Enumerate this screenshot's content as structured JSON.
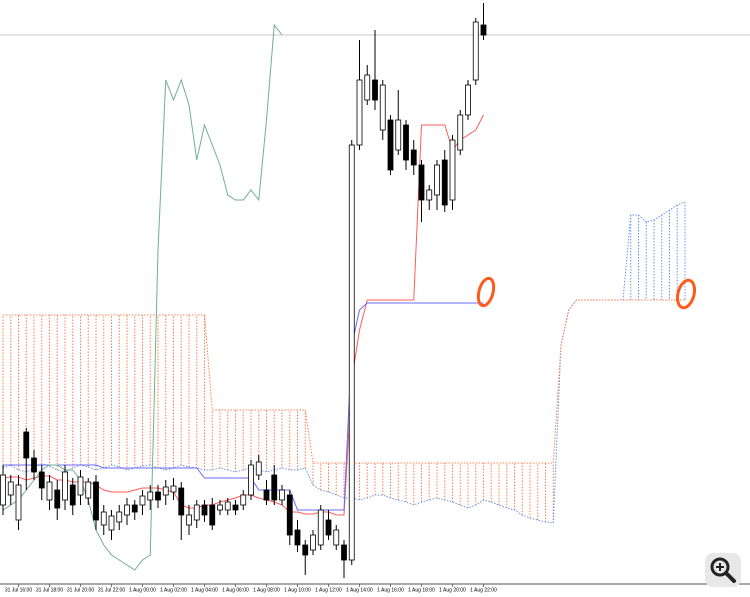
{
  "chart_data": {
    "type": "candlestick",
    "categories": [
      null,
      null,
      "31 Jul 16:00",
      null,
      null,
      null,
      "31 Jul 18:00",
      null,
      null,
      null,
      "31 Jul 20:00",
      null,
      null,
      null,
      "31 Jul 22:00",
      null,
      null,
      null,
      "1 Aug 00:00",
      null,
      null,
      null,
      "1 Aug 02:00",
      null,
      null,
      null,
      "1 Aug 04:00",
      null,
      null,
      null,
      "1 Aug 06:00",
      null,
      null,
      null,
      "1 Aug 08:00",
      null,
      null,
      null,
      "1 Aug 10:00",
      null,
      null,
      null,
      "1 Aug 12:00",
      null,
      null,
      null,
      "1 Aug 14:00",
      null,
      null,
      null,
      "1 Aug 16:00",
      null,
      null,
      null,
      "1 Aug 18:00",
      null,
      null,
      null,
      "1 Aug 20:00",
      null,
      null,
      null,
      "1 Aug 22:00"
    ],
    "open": [
      75,
      85,
      60,
      148,
      122,
      108,
      80,
      90,
      80,
      95,
      85,
      82,
      98,
      55,
      50,
      58,
      65,
      75,
      75,
      80,
      88,
      85,
      88,
      92,
      55,
      60,
      75,
      75,
      70,
      70,
      75,
      75,
      85,
      105,
      90,
      105,
      80,
      85,
      50,
      35,
      30,
      35,
      60,
      35,
      35,
      20,
      435,
      480,
      500,
      450,
      460,
      430,
      455,
      430,
      415,
      380,
      385,
      420,
      380,
      430,
      465,
      500,
      555
    ],
    "high": [
      115,
      105,
      105,
      152,
      130,
      115,
      105,
      100,
      115,
      102,
      110,
      102,
      105,
      75,
      70,
      75,
      82,
      80,
      90,
      95,
      95,
      100,
      102,
      98,
      75,
      80,
      80,
      82,
      80,
      82,
      80,
      90,
      120,
      125,
      100,
      115,
      95,
      90,
      60,
      40,
      50,
      75,
      70,
      55,
      40,
      440,
      540,
      515,
      550,
      500,
      465,
      490,
      460,
      440,
      420,
      395,
      420,
      430,
      445,
      470,
      500,
      562,
      577
    ],
    "low": [
      65,
      75,
      50,
      90,
      100,
      80,
      70,
      60,
      70,
      65,
      75,
      75,
      50,
      45,
      40,
      50,
      55,
      60,
      65,
      70,
      72,
      75,
      80,
      40,
      45,
      52,
      58,
      50,
      65,
      65,
      65,
      70,
      80,
      100,
      75,
      75,
      75,
      35,
      28,
      5,
      25,
      30,
      40,
      30,
      2,
      15,
      430,
      475,
      470,
      440,
      405,
      425,
      410,
      405,
      358,
      370,
      370,
      368,
      370,
      425,
      460,
      495,
      540
    ],
    "close": [
      105,
      98,
      95,
      122,
      108,
      92,
      98,
      72,
      108,
      75,
      103,
      98,
      60,
      68,
      64,
      68,
      75,
      68,
      84,
      88,
      80,
      93,
      94,
      65,
      65,
      75,
      65,
      55,
      75,
      78,
      70,
      85,
      115,
      118,
      80,
      80,
      90,
      45,
      35,
      25,
      45,
      70,
      45,
      50,
      20,
      435,
      500,
      505,
      480,
      495,
      410,
      460,
      420,
      415,
      380,
      390,
      415,
      375,
      440,
      465,
      495,
      558,
      545
    ],
    "up_color": "#ffffff",
    "down_color": "#000000",
    "ylim": [
      0,
      580
    ],
    "series": [
      {
        "color": "#ff5b5b",
        "values": [
          102,
          103,
          103,
          100,
          102,
          104,
          104,
          100,
          100,
          98,
          98,
          98,
          95,
          90,
          88,
          88,
          88,
          90,
          92,
          92,
          92,
          90,
          88,
          75,
          72,
          72,
          75,
          75,
          78,
          80,
          82,
          85,
          85,
          82,
          80,
          78,
          75,
          68,
          68,
          66,
          66,
          68,
          68,
          65,
          65,
          200,
          250,
          280,
          280,
          280,
          280,
          280,
          280,
          280,
          455,
          455,
          455,
          455,
          430,
          440,
          445,
          450,
          465
        ]
      },
      {
        "color": "#6a6aff",
        "values": [
          115,
          115,
          115,
          115,
          115,
          115,
          115,
          115,
          115,
          115,
          115,
          115,
          115,
          112,
          112,
          112,
          112,
          112,
          112,
          112,
          112,
          112,
          112,
          112,
          112,
          112,
          102,
          102,
          102,
          102,
          102,
          102,
          102,
          90,
          90,
          90,
          90,
          90,
          70,
          70,
          70,
          70,
          70,
          70,
          70,
          235,
          270,
          277,
          277,
          277,
          277,
          277,
          277,
          277,
          277,
          277,
          277,
          277,
          277,
          277,
          277,
          277,
          277
        ]
      },
      {
        "color": "#6fb08f",
        "values": [
          70,
          75,
          80,
          90,
          100,
          110,
          115,
          115,
          110,
          110,
          100,
          80,
          50,
          35,
          25,
          20,
          15,
          10,
          20,
          25,
          330,
          500,
          480,
          500,
          475,
          420,
          455,
          435,
          415,
          385,
          380,
          380,
          390,
          380,
          460,
          555,
          545,
          null,
          null,
          null,
          null,
          null,
          null,
          null,
          null,
          null,
          null,
          null,
          null,
          null,
          null,
          null,
          null,
          null,
          null,
          null,
          null,
          null,
          null,
          null,
          null,
          null,
          null
        ]
      }
    ],
    "cloud": {
      "up_color": "#6495ed",
      "down_color": "#ff7f50",
      "senkou_a": [
        112,
        115,
        110,
        108,
        112,
        116,
        114,
        110,
        108,
        112,
        115,
        113,
        110,
        112,
        115,
        113,
        110,
        112,
        114,
        115,
        112,
        110,
        112,
        115,
        113,
        112,
        110,
        110,
        112,
        110,
        108,
        110,
        112,
        110,
        108,
        110,
        112,
        110,
        110,
        112,
        95,
        90,
        88,
        85,
        82,
        82,
        80,
        82,
        85,
        85,
        82,
        80,
        78,
        75,
        78,
        80,
        82,
        80,
        78,
        75,
        72,
        75,
        80,
        78,
        75,
        72,
        70,
        65,
        62,
        60,
        58,
        57,
        235,
        270,
        280,
        280,
        280,
        280,
        280,
        280,
        280,
        365,
        365,
        358,
        360,
        365,
        370,
        375,
        378
      ],
      "senkou_b": [
        265,
        265,
        265,
        265,
        265,
        265,
        265,
        265,
        265,
        265,
        265,
        265,
        265,
        265,
        265,
        265,
        265,
        265,
        265,
        265,
        265,
        265,
        265,
        265,
        265,
        265,
        265,
        170,
        170,
        170,
        170,
        170,
        170,
        170,
        170,
        170,
        170,
        170,
        170,
        170,
        117,
        117,
        117,
        117,
        117,
        117,
        117,
        117,
        117,
        117,
        117,
        117,
        117,
        117,
        117,
        117,
        117,
        117,
        117,
        117,
        117,
        117,
        117,
        117,
        117,
        117,
        117,
        117,
        117,
        117,
        117,
        117,
        235,
        270,
        280,
        280,
        280,
        280,
        280,
        280,
        280,
        280,
        280,
        280,
        280,
        280,
        280,
        280,
        280
      ]
    }
  }
}
